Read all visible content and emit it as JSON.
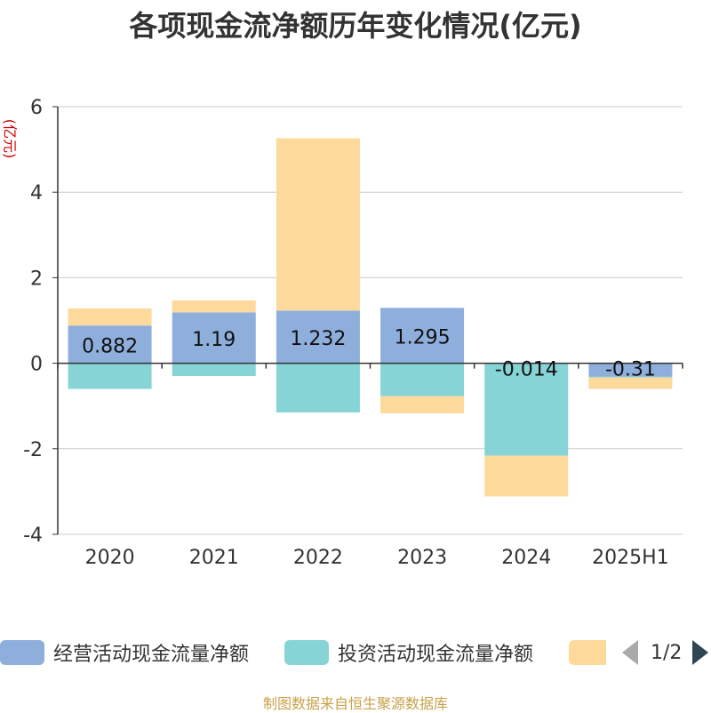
{
  "title": "各项现金流净额历年变化情况(亿元)",
  "unit_label": "(亿元)",
  "footer": "制图数据来自恒生聚源数据库",
  "legend": {
    "items": [
      {
        "label": "经营活动现金流量净额",
        "color": "#8eaedc"
      },
      {
        "label": "投资活动现金流量净额",
        "color": "#86d4d6"
      },
      {
        "label": "",
        "color": "#fdd99b"
      }
    ],
    "page_text": "1/2"
  },
  "chart_data": {
    "type": "bar",
    "stacked": true,
    "categories": [
      "2020",
      "2021",
      "2022",
      "2023",
      "2024",
      "2025H1"
    ],
    "series": [
      {
        "name": "经营活动现金流量净额",
        "color": "#8eaedc",
        "values": [
          0.882,
          1.19,
          1.232,
          1.295,
          -0.014,
          -0.31
        ],
        "labels": [
          "0.882",
          "1.19",
          "1.232",
          "1.295",
          "-0.014",
          "-0.31"
        ]
      },
      {
        "name": "投资活动现金流量净额",
        "color": "#86d4d6",
        "values": [
          -0.6,
          -0.3,
          -1.15,
          -0.77,
          -2.15,
          -0.02
        ]
      },
      {
        "color": "#fdd99b",
        "values": [
          0.4,
          0.28,
          4.03,
          -0.4,
          -0.95,
          -0.27
        ]
      }
    ],
    "y_ticks": [
      "6",
      "4",
      "2",
      "0",
      "-2",
      "-4"
    ],
    "ylim": [
      -4,
      6
    ],
    "grid": true,
    "legend_position": "bottom"
  }
}
